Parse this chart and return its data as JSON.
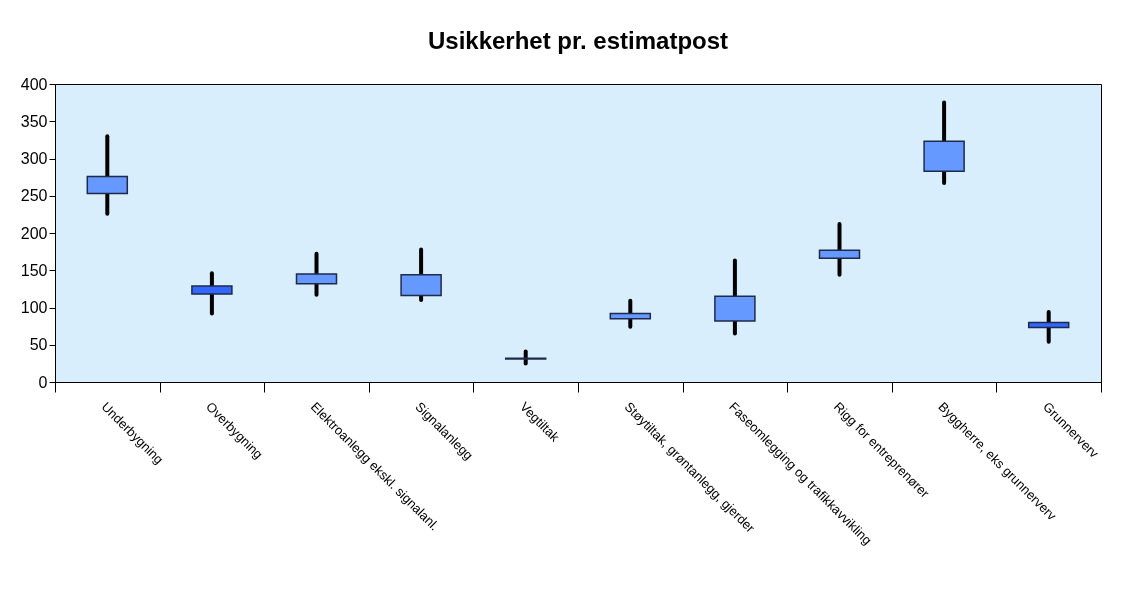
{
  "chart_data": {
    "type": "candlestick",
    "title": "Usikkerhet pr. estimatpost",
    "categories": [
      "Underbygning",
      "Overbygning",
      "Elektroanlegg ekskl. signalanl.",
      "Signalanlegg",
      "Vegtiltak",
      "Støytiltak, grøntanlegg, gjerder",
      "Faseomlegging og trafikkavvikling",
      "Rigg for entreprenører",
      "Byggherre, eks grunnerverv",
      "Grunnerverv"
    ],
    "ohlc": [
      [
        253,
        330,
        226,
        276
      ],
      [
        129,
        146,
        92,
        118
      ],
      [
        132,
        172,
        117,
        145
      ],
      [
        116,
        178,
        110,
        144
      ],
      [
        31,
        41,
        25,
        32
      ],
      [
        85,
        109,
        74,
        92
      ],
      [
        82,
        163,
        65,
        115
      ],
      [
        166,
        212,
        144,
        177
      ],
      [
        283,
        375,
        267,
        323
      ],
      [
        80,
        94,
        54,
        73
      ]
    ],
    "colors": [
      "#6699ff",
      "#3366ff",
      "#6699ff",
      "#6699ff",
      "#6699ff",
      "#6699ff",
      "#6699ff",
      "#6699ff",
      "#6699ff",
      "#3366ff"
    ],
    "ylim": [
      0,
      400
    ],
    "yticks": [
      0,
      50,
      100,
      150,
      200,
      250,
      300,
      350,
      400
    ],
    "grid": false
  }
}
